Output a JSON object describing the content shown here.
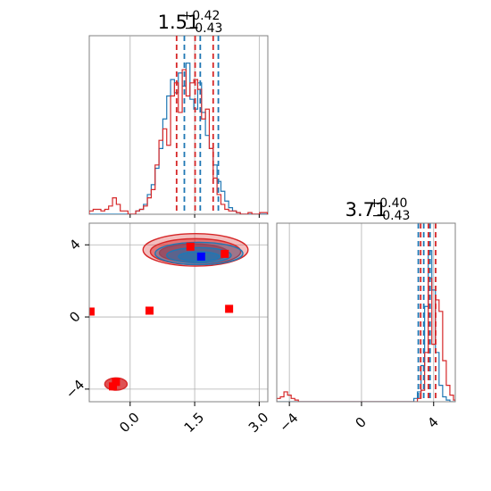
{
  "chart_data": {
    "type": "corner",
    "colors": {
      "blue": "#1f77b4",
      "red": "#d62728",
      "frame": "#808080",
      "grid": "#b0b0b0"
    },
    "params": [
      {
        "title_value": "1.51",
        "title_plus": "+0.42",
        "title_minus": "−0.43",
        "range": [
          -0.95,
          3.2
        ],
        "ticks": [
          0.0,
          1.5,
          3.0
        ],
        "tick_labels": [
          "0.0",
          "1.5",
          "3.0"
        ]
      },
      {
        "title_value": "3.71",
        "title_plus": "+0.40",
        "title_minus": "−0.43",
        "range": [
          -4.7,
          5.2
        ],
        "ticks": [
          -4,
          0,
          4
        ],
        "tick_labels": [
          "−4",
          "0",
          "4"
        ]
      }
    ],
    "panel_00": {
      "type": "histogram",
      "ymax": 1.0,
      "red_bins": {
        "x0": -0.95,
        "dx": 0.09,
        "values": [
          0.02,
          0.03,
          0.03,
          0.02,
          0.03,
          0.05,
          0.1,
          0.06,
          0.02,
          0.02,
          0.0,
          0.0,
          0.02,
          0.03,
          0.05,
          0.1,
          0.15,
          0.3,
          0.45,
          0.52,
          0.42,
          0.72,
          0.8,
          0.62,
          0.88,
          0.72,
          0.8,
          0.82,
          0.76,
          0.58,
          0.64,
          0.4,
          0.22,
          0.12,
          0.06,
          0.03,
          0.02,
          0.02,
          0.01,
          0.0,
          0.0,
          0.01,
          0.0,
          0.0,
          0.01,
          0.01
        ]
      },
      "blue_bins": {
        "x0": -0.95,
        "dx": 0.09,
        "values": [
          0.0,
          0.0,
          0.0,
          0.0,
          0.0,
          0.0,
          0.0,
          0.0,
          0.0,
          0.0,
          0.0,
          0.0,
          0.02,
          0.03,
          0.06,
          0.12,
          0.18,
          0.28,
          0.4,
          0.58,
          0.72,
          0.82,
          0.74,
          0.86,
          0.78,
          0.92,
          0.7,
          0.64,
          0.8,
          0.62,
          0.48,
          0.4,
          0.3,
          0.2,
          0.14,
          0.08,
          0.04,
          0.02,
          0.01,
          0.0,
          0.0,
          0.0,
          0.0,
          0.0,
          0.0,
          0.0
        ]
      },
      "red_quantiles": [
        1.08,
        1.51,
        1.93
      ],
      "blue_quantiles": [
        1.26,
        1.63,
        2.05
      ]
    },
    "panel_10": {
      "type": "2d-density",
      "red_contours": [
        {
          "cx": 1.52,
          "cy": 3.72,
          "rx": 1.22,
          "ry": 0.9
        },
        {
          "cx": 1.52,
          "cy": 3.62,
          "rx": 1.05,
          "ry": 0.72
        },
        {
          "cx": 1.48,
          "cy": 3.55,
          "rx": 0.8,
          "ry": 0.5
        },
        {
          "cx": -0.33,
          "cy": -3.72,
          "rx": 0.26,
          "ry": 0.34
        }
      ],
      "blue_contours": [
        {
          "cx": 1.6,
          "cy": 3.52,
          "rx": 1.02,
          "ry": 0.62
        },
        {
          "cx": 1.6,
          "cy": 3.42,
          "rx": 0.75,
          "ry": 0.42
        },
        {
          "cx": 1.6,
          "cy": 3.35,
          "rx": 0.48,
          "ry": 0.26
        }
      ],
      "red_markers": [
        [
          -0.92,
          0.3
        ],
        [
          0.45,
          0.35
        ],
        [
          2.3,
          0.45
        ],
        [
          1.4,
          3.9
        ],
        [
          2.2,
          3.5
        ],
        [
          -0.33,
          -3.6
        ],
        [
          -0.4,
          -3.85
        ]
      ],
      "blue_markers": [
        [
          1.65,
          3.35
        ]
      ]
    },
    "panel_11": {
      "type": "histogram",
      "ymax": 1.0,
      "red_bins": {
        "x0": -4.7,
        "dx": 0.2,
        "values": [
          0.02,
          0.03,
          0.06,
          0.04,
          0.02,
          0.01,
          0.0,
          0.0,
          0.0,
          0.0,
          0.0,
          0.0,
          0.0,
          0.0,
          0.0,
          0.0,
          0.0,
          0.0,
          0.0,
          0.0,
          0.0,
          0.0,
          0.0,
          0.0,
          0.0,
          0.0,
          0.0,
          0.0,
          0.0,
          0.0,
          0.0,
          0.0,
          0.0,
          0.0,
          0.0,
          0.0,
          0.0,
          0.0,
          0.0,
          0.02,
          0.07,
          0.3,
          0.75,
          0.35,
          0.62,
          0.55,
          0.25,
          0.1,
          0.04,
          0.01
        ]
      },
      "blue_bins": {
        "x0": -4.7,
        "dx": 0.2,
        "values": [
          0.0,
          0.0,
          0.0,
          0.0,
          0.0,
          0.0,
          0.0,
          0.0,
          0.0,
          0.0,
          0.0,
          0.0,
          0.0,
          0.0,
          0.0,
          0.0,
          0.0,
          0.0,
          0.0,
          0.0,
          0.0,
          0.0,
          0.0,
          0.0,
          0.0,
          0.0,
          0.0,
          0.0,
          0.0,
          0.0,
          0.0,
          0.0,
          0.0,
          0.0,
          0.0,
          0.0,
          0.0,
          0.0,
          0.02,
          0.06,
          0.22,
          0.58,
          0.92,
          0.68,
          0.3,
          0.1,
          0.03,
          0.01,
          0.0,
          0.0
        ]
      },
      "red_quantiles": [
        3.28,
        3.71,
        4.11
      ],
      "blue_quantiles": [
        3.15,
        3.45,
        3.8
      ]
    }
  }
}
